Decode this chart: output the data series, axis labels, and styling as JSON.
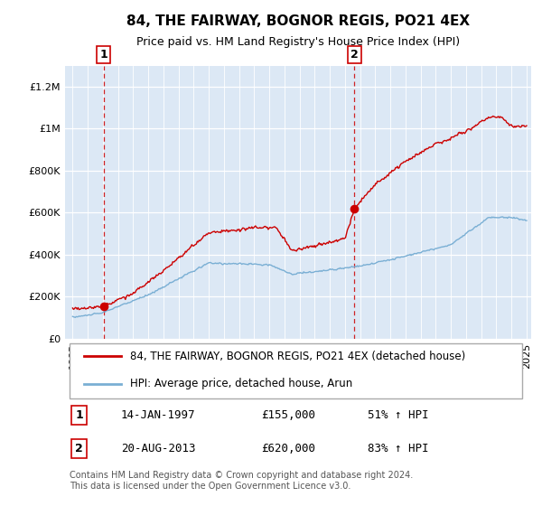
{
  "title": "84, THE FAIRWAY, BOGNOR REGIS, PO21 4EX",
  "subtitle": "Price paid vs. HM Land Registry's House Price Index (HPI)",
  "legend_line1": "84, THE FAIRWAY, BOGNOR REGIS, PO21 4EX (detached house)",
  "legend_line2": "HPI: Average price, detached house, Arun",
  "annotation1_label": "1",
  "annotation1_date": "14-JAN-1997",
  "annotation1_price": "£155,000",
  "annotation1_hpi": "51% ↑ HPI",
  "annotation1_year": 1997.04,
  "annotation1_value": 155000,
  "annotation2_label": "2",
  "annotation2_date": "20-AUG-2013",
  "annotation2_price": "£620,000",
  "annotation2_hpi": "83% ↑ HPI",
  "annotation2_year": 2013.63,
  "annotation2_value": 620000,
  "footer": "Contains HM Land Registry data © Crown copyright and database right 2024.\nThis data is licensed under the Open Government Licence v3.0.",
  "red_color": "#cc0000",
  "blue_color": "#7aafd4",
  "background_color": "#dce8f5",
  "ylim": [
    0,
    1300000
  ],
  "xlim_start": 1994.5,
  "xlim_end": 2025.3
}
